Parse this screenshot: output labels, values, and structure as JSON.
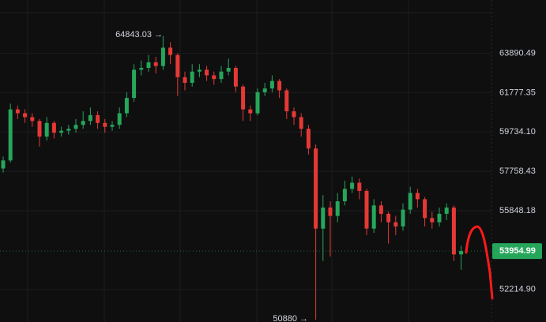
{
  "chart_data": {
    "type": "candlestick",
    "log_scale": true,
    "grid": true,
    "up_color": "#26a65b",
    "down_color": "#e53935",
    "ylim": [
      50780,
      66870
    ],
    "yticks": [
      63890.49,
      61777.35,
      {
        "value": 59734.1,
        "label": "59734.10"
      },
      57758.43,
      55848.18,
      {
        "value": 52214.9,
        "label": "52214.90"
      }
    ],
    "max_label": "64843.03 →",
    "min_label": "50880 →",
    "open": [
      57900,
      58300,
      60900,
      60700,
      60500,
      60300,
      59500,
      60200,
      59700,
      59800,
      59900,
      60100,
      60300,
      60600,
      60200,
      60000,
      60100,
      60700,
      61500,
      63000,
      63100,
      63400,
      63200,
      64200,
      63800,
      62600,
      62300,
      62900,
      63000,
      62700,
      62500,
      62900,
      63100,
      62100,
      60900,
      60700,
      61800,
      62000,
      62400,
      61900,
      60800,
      60500,
      59900,
      58900,
      55000,
      56000,
      55600,
      56300,
      56900,
      57200,
      56800,
      55000,
      56100,
      55700,
      55300,
      55100,
      55900,
      56700,
      56400,
      55500,
      55300,
      55700,
      56000,
      53800
    ],
    "close": [
      58300,
      60900,
      60700,
      60500,
      60300,
      59500,
      60200,
      59700,
      59800,
      59900,
      60100,
      60300,
      60600,
      60200,
      60000,
      60100,
      60700,
      61500,
      63000,
      63100,
      63400,
      63200,
      64200,
      63800,
      62600,
      62300,
      62900,
      63000,
      62700,
      62500,
      62900,
      63100,
      62100,
      60900,
      60700,
      61800,
      62000,
      62400,
      61900,
      60800,
      60500,
      59900,
      58900,
      55000,
      56000,
      55600,
      56300,
      56900,
      57200,
      56800,
      55000,
      56100,
      55700,
      55300,
      55100,
      55900,
      56700,
      56400,
      55500,
      55300,
      55700,
      56000,
      53800,
      53954.99
    ],
    "high": [
      58500,
      61200,
      61100,
      60900,
      60700,
      60400,
      60500,
      60300,
      60000,
      60100,
      60400,
      60800,
      61000,
      60800,
      60400,
      60300,
      61000,
      61800,
      63300,
      63500,
      63800,
      63700,
      64843.03,
      64500,
      63900,
      62900,
      63300,
      63300,
      63200,
      62900,
      63200,
      63600,
      63200,
      62200,
      61100,
      62000,
      62300,
      62700,
      62500,
      62000,
      61000,
      60700,
      60100,
      59100,
      56600,
      56300,
      56700,
      57300,
      57500,
      57400,
      56900,
      56400,
      56300,
      55800,
      55600,
      56200,
      57000,
      56900,
      56500,
      55800,
      56000,
      56200,
      56100,
      54200
    ],
    "low": [
      57700,
      58200,
      60400,
      60200,
      60000,
      59000,
      59300,
      59400,
      59500,
      59600,
      59700,
      59900,
      60100,
      59900,
      59700,
      59800,
      59900,
      60500,
      61300,
      62700,
      62900,
      62800,
      63000,
      63300,
      61600,
      61900,
      62100,
      62600,
      62400,
      62200,
      62300,
      62700,
      61800,
      60300,
      60300,
      60600,
      61600,
      61800,
      61500,
      60400,
      60100,
      59500,
      58600,
      50880,
      53500,
      53700,
      55300,
      56100,
      56700,
      56400,
      54700,
      54800,
      55300,
      54300,
      54700,
      54900,
      55700,
      56000,
      55100,
      55000,
      55100,
      55400,
      53500,
      53100
    ]
  }
}
